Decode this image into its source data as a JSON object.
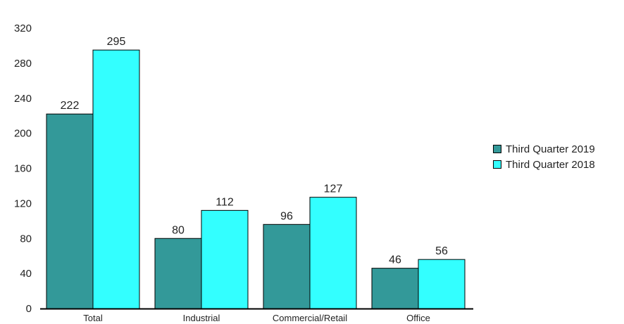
{
  "chart_data": {
    "type": "bar",
    "categories": [
      "Total",
      "Industrial",
      "Commercial/Retail",
      "Office"
    ],
    "series": [
      {
        "name": "Third Quarter 2019",
        "color": "#339999",
        "values": [
          222,
          80,
          96,
          46
        ]
      },
      {
        "name": "Third Quarter 2018",
        "color": "#33ffff",
        "values": [
          295,
          112,
          127,
          56
        ]
      }
    ],
    "y_ticks": [
      "0",
      "40",
      "80",
      "120",
      "160",
      "200",
      "240",
      "280",
      "320"
    ],
    "ylim": [
      0,
      320
    ],
    "grid": false,
    "legend_position": "right"
  }
}
